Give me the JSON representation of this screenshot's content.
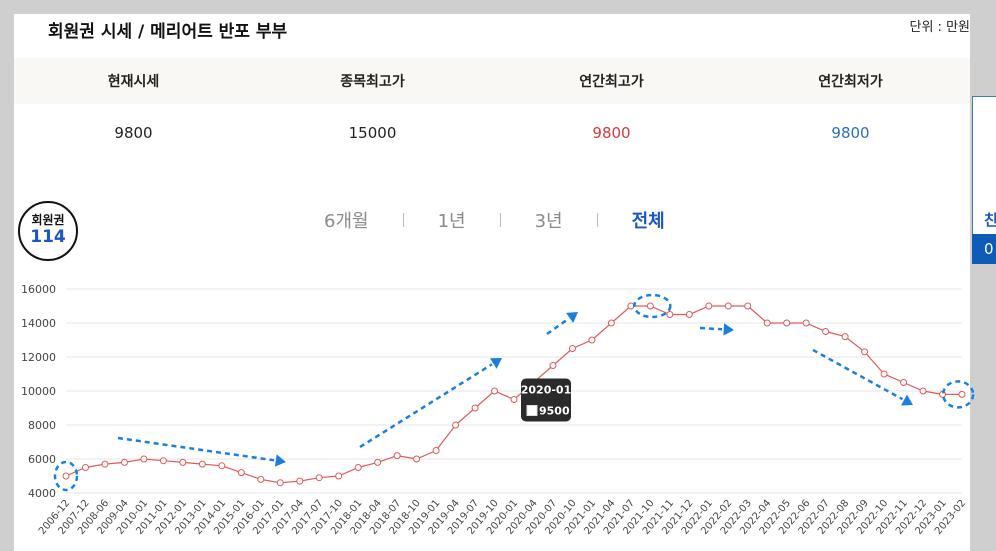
{
  "header": {
    "title": "회원권 시세 / 메리어트 반포 부부",
    "unit": "단위 : 만원"
  },
  "summary": {
    "labels": [
      "현재시세",
      "종목최고가",
      "연간최고가",
      "연간최저가"
    ],
    "values": [
      "9800",
      "15000",
      "9800",
      "9800"
    ]
  },
  "badge": {
    "line1": "회원권",
    "line2": "114"
  },
  "tabs": [
    "6개월",
    "1년",
    "3년",
    "전체"
  ],
  "active_tab": "전체",
  "side_widget": {
    "text1": "친",
    "text2": "0"
  },
  "colors": {
    "line": "#e05a5a",
    "annotation": "#1a7fe0",
    "tooltip_bg": "#2b2b2b",
    "active_tab": "#1a56c4"
  },
  "tooltip": {
    "date": "2020-01",
    "value": "9500"
  },
  "chart_data": {
    "type": "line",
    "x": [
      "2006-12",
      "2007-12",
      "2008-06",
      "2009-04",
      "2010-01",
      "2011-01",
      "2012-01",
      "2013-01",
      "2014-01",
      "2015-01",
      "2016-01",
      "2017-01",
      "2017-04",
      "2017-07",
      "2017-10",
      "2018-01",
      "2018-04",
      "2018-07",
      "2018-10",
      "2019-01",
      "2019-04",
      "2019-07",
      "2019-10",
      "2020-01",
      "2020-04",
      "2020-07",
      "2020-10",
      "2021-01",
      "2021-04",
      "2021-07",
      "2021-10",
      "2021-11",
      "2021-12",
      "2022-01",
      "2022-02",
      "2022-03",
      "2022-04",
      "2022-05",
      "2022-06",
      "2022-07",
      "2022-08",
      "2022-09",
      "2022-10",
      "2022-11",
      "2022-12",
      "2023-01",
      "2023-02"
    ],
    "values": [
      5000,
      5500,
      5700,
      5800,
      6000,
      5900,
      5800,
      5700,
      5600,
      5200,
      4800,
      4600,
      4700,
      4900,
      5000,
      5500,
      5800,
      6200,
      6000,
      6500,
      8000,
      9000,
      10000,
      9500,
      10500,
      11500,
      12500,
      13000,
      14000,
      15000,
      15000,
      14500,
      14500,
      15000,
      15000,
      15000,
      14000,
      14000,
      14000,
      13500,
      13200,
      12300,
      11000,
      10500,
      10000,
      9800,
      9800
    ],
    "yticks": [
      "4000",
      "6000",
      "8000",
      "10000",
      "12000",
      "14000",
      "16000"
    ],
    "ylim": [
      4000,
      16000
    ],
    "grid": true,
    "legend": "none"
  }
}
